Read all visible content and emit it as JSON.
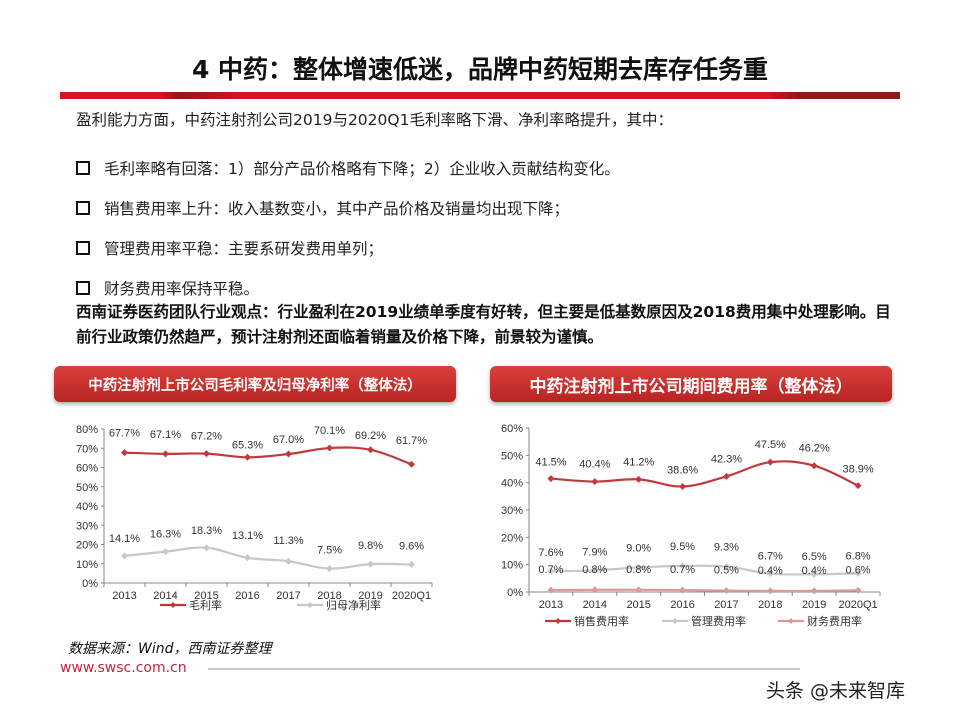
{
  "header": {
    "title": "4 中药：整体增速低迷，品牌中药短期去库存任务重"
  },
  "body": {
    "intro": "盈利能力方面，中药注射剂公司2019与2020Q1毛利率略下滑、净利率略提升，其中：",
    "bullets": [
      "毛利率略有回落：1）部分产品价格略有下降；2）企业收入贡献结构变化。",
      "销售费用率上升：收入基数变小，其中产品价格及销量均出现下降；",
      "管理费用率平稳：主要系研发费用单列；",
      "财务费用率保持平稳。"
    ],
    "viewpoint": "西南证券医药团队行业观点：行业盈利在2019业绩单季度有好转，但主要是低基数原因及2018费用集中处理影响。目前行业政策仍然趋严，预计注射剂还面临着销量及价格下降，前景较为谨慎。"
  },
  "charts": {
    "left_title": "中药注射剂上市公司毛利率及归母净利率（整体法）",
    "right_title": "中药注射剂上市公司期间费用率（整体法）"
  },
  "chart_data": [
    {
      "type": "line",
      "title": "中药注射剂上市公司毛利率及归母净利率（整体法）",
      "categories": [
        "2013",
        "2014",
        "2015",
        "2016",
        "2017",
        "2018",
        "2019",
        "2020Q1"
      ],
      "series": [
        {
          "name": "毛利率",
          "color": "#c0393b",
          "values": [
            67.7,
            67.1,
            67.2,
            65.3,
            67.0,
            70.1,
            69.2,
            61.7
          ],
          "labels": [
            "67.7%",
            "67.1%",
            "67.2%",
            "65.3%",
            "67.0%",
            "70.1%",
            "69.2%",
            "61.7%"
          ]
        },
        {
          "name": "归母净利率",
          "color": "#c8c8c8",
          "values": [
            14.1,
            16.3,
            18.3,
            13.1,
            11.3,
            7.5,
            9.8,
            9.6
          ],
          "labels": [
            "14.1%",
            "16.3%",
            "18.3%",
            "13.1%",
            "11.3%",
            "7.5%",
            "9.8%",
            "9.6%"
          ]
        }
      ],
      "yticks": [
        "0%",
        "10%",
        "20%",
        "30%",
        "40%",
        "50%",
        "60%",
        "70%",
        "80%"
      ],
      "ylim": [
        0,
        80
      ],
      "xlabel": "",
      "ylabel": "",
      "grid": false,
      "legend_position": "bottom"
    },
    {
      "type": "line",
      "title": "中药注射剂上市公司期间费用率（整体法）",
      "categories": [
        "2013",
        "2014",
        "2015",
        "2016",
        "2017",
        "2018",
        "2019",
        "2020Q1"
      ],
      "series": [
        {
          "name": "销售费用率",
          "color": "#c0393b",
          "values": [
            41.5,
            40.4,
            41.2,
            38.6,
            42.3,
            47.5,
            46.2,
            38.9
          ],
          "labels": [
            "41.5%",
            "40.4%",
            "41.2%",
            "38.6%",
            "42.3%",
            "47.5%",
            "46.2%",
            "38.9%"
          ]
        },
        {
          "name": "管理费用率",
          "color": "#c8c8c8",
          "values": [
            7.6,
            7.9,
            9.0,
            9.5,
            9.3,
            6.7,
            6.5,
            6.8
          ],
          "labels": [
            "7.6%",
            "7.9%",
            "9.0%",
            "9.5%",
            "9.3%",
            "6.7%",
            "6.5%",
            "6.8%"
          ]
        },
        {
          "name": "财务费用率",
          "color": "#d99a9a",
          "values": [
            0.7,
            0.8,
            0.8,
            0.7,
            0.5,
            0.4,
            0.4,
            0.6
          ],
          "labels": [
            "0.7%",
            "0.8%",
            "0.8%",
            "0.7%",
            "0.5%",
            "0.4%",
            "0.4%",
            "0.6%"
          ]
        }
      ],
      "yticks": [
        "0%",
        "10%",
        "20%",
        "30%",
        "40%",
        "50%",
        "60%"
      ],
      "ylim": [
        0,
        60
      ],
      "xlabel": "",
      "ylabel": "",
      "grid": false,
      "legend_position": "bottom"
    }
  ],
  "footer": {
    "source": "数据来源：Wind，西南证券整理",
    "site": "www.swsc.com.cn",
    "watermark": "头条 @未来智库"
  }
}
